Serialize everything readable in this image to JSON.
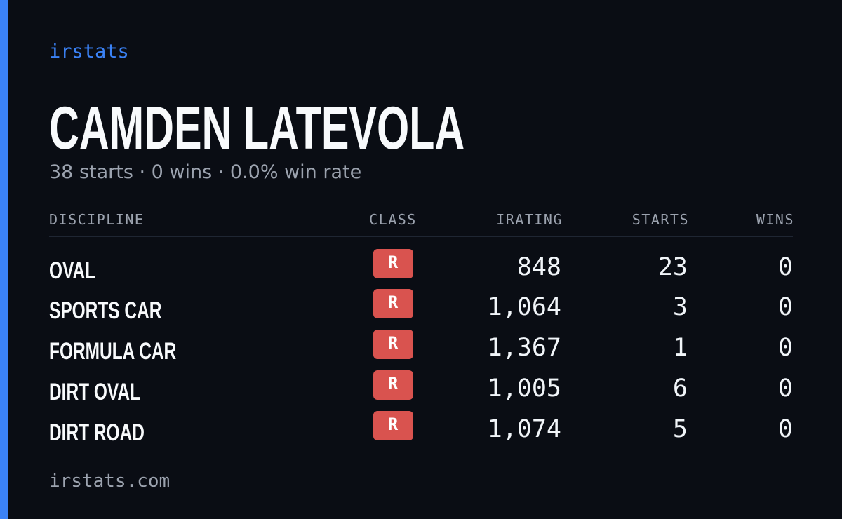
{
  "brand": "irstats",
  "profile": {
    "name": "CAMDEN LATEVOLA",
    "summary": "38 starts · 0 wins · 0.0% win rate"
  },
  "table": {
    "columns": [
      "DISCIPLINE",
      "CLASS",
      "IRATING",
      "STARTS",
      "WINS"
    ],
    "rows": [
      [
        "OVAL",
        "R",
        "848",
        "23",
        "0"
      ],
      [
        "SPORTS CAR",
        "R",
        "1,064",
        "3",
        "0"
      ],
      [
        "FORMULA CAR",
        "R",
        "1,367",
        "1",
        "0"
      ],
      [
        "DIRT OVAL",
        "R",
        "1,005",
        "6",
        "0"
      ],
      [
        "DIRT ROAD",
        "R",
        "1,074",
        "5",
        "0"
      ]
    ]
  },
  "footer": "irstats.com"
}
